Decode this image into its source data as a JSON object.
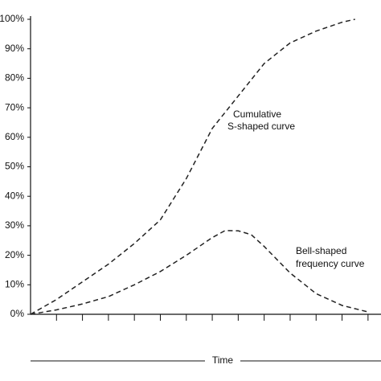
{
  "chart_data": {
    "type": "line",
    "x_label": "Time",
    "annotations": [
      "Cumulative",
      "S-shaped curve",
      "Bell-shaped",
      "frequency curve"
    ],
    "xlim": [
      0,
      13.5
    ],
    "xticks": [
      1,
      2,
      3,
      4,
      5,
      6,
      7,
      8,
      9,
      10,
      11,
      12,
      13
    ],
    "ylim": [
      0,
      100
    ],
    "yticks": [
      {
        "value": 0,
        "label": "0%"
      },
      {
        "value": 10,
        "label": "10%"
      },
      {
        "value": 20,
        "label": "20%"
      },
      {
        "value": 30,
        "label": "30%"
      },
      {
        "value": 40,
        "label": "40%"
      },
      {
        "value": 50,
        "label": "50%"
      },
      {
        "value": 60,
        "label": "60%"
      },
      {
        "value": 70,
        "label": "70%"
      },
      {
        "value": 80,
        "label": "80%"
      },
      {
        "value": 90,
        "label": "90%"
      },
      {
        "value": 100,
        "label": "100%"
      }
    ],
    "series": [
      {
        "color": "#222222",
        "x": [
          0,
          1,
          2,
          3,
          4,
          5,
          6,
          7,
          8,
          9,
          10,
          11,
          12,
          12.5
        ],
        "values": [
          0,
          5,
          11,
          17,
          24,
          32,
          46,
          63,
          74,
          85,
          92,
          96,
          99,
          100
        ]
      },
      {
        "color": "#222222",
        "x": [
          0,
          1,
          2,
          3,
          4,
          5,
          6,
          7,
          7.5,
          8,
          8.5,
          9,
          10,
          11,
          12,
          13
        ],
        "values": [
          0,
          1.5,
          3.5,
          6,
          10,
          14.5,
          20,
          26,
          28.4,
          28.3,
          27,
          23,
          14,
          7,
          3,
          0.8
        ]
      }
    ]
  }
}
